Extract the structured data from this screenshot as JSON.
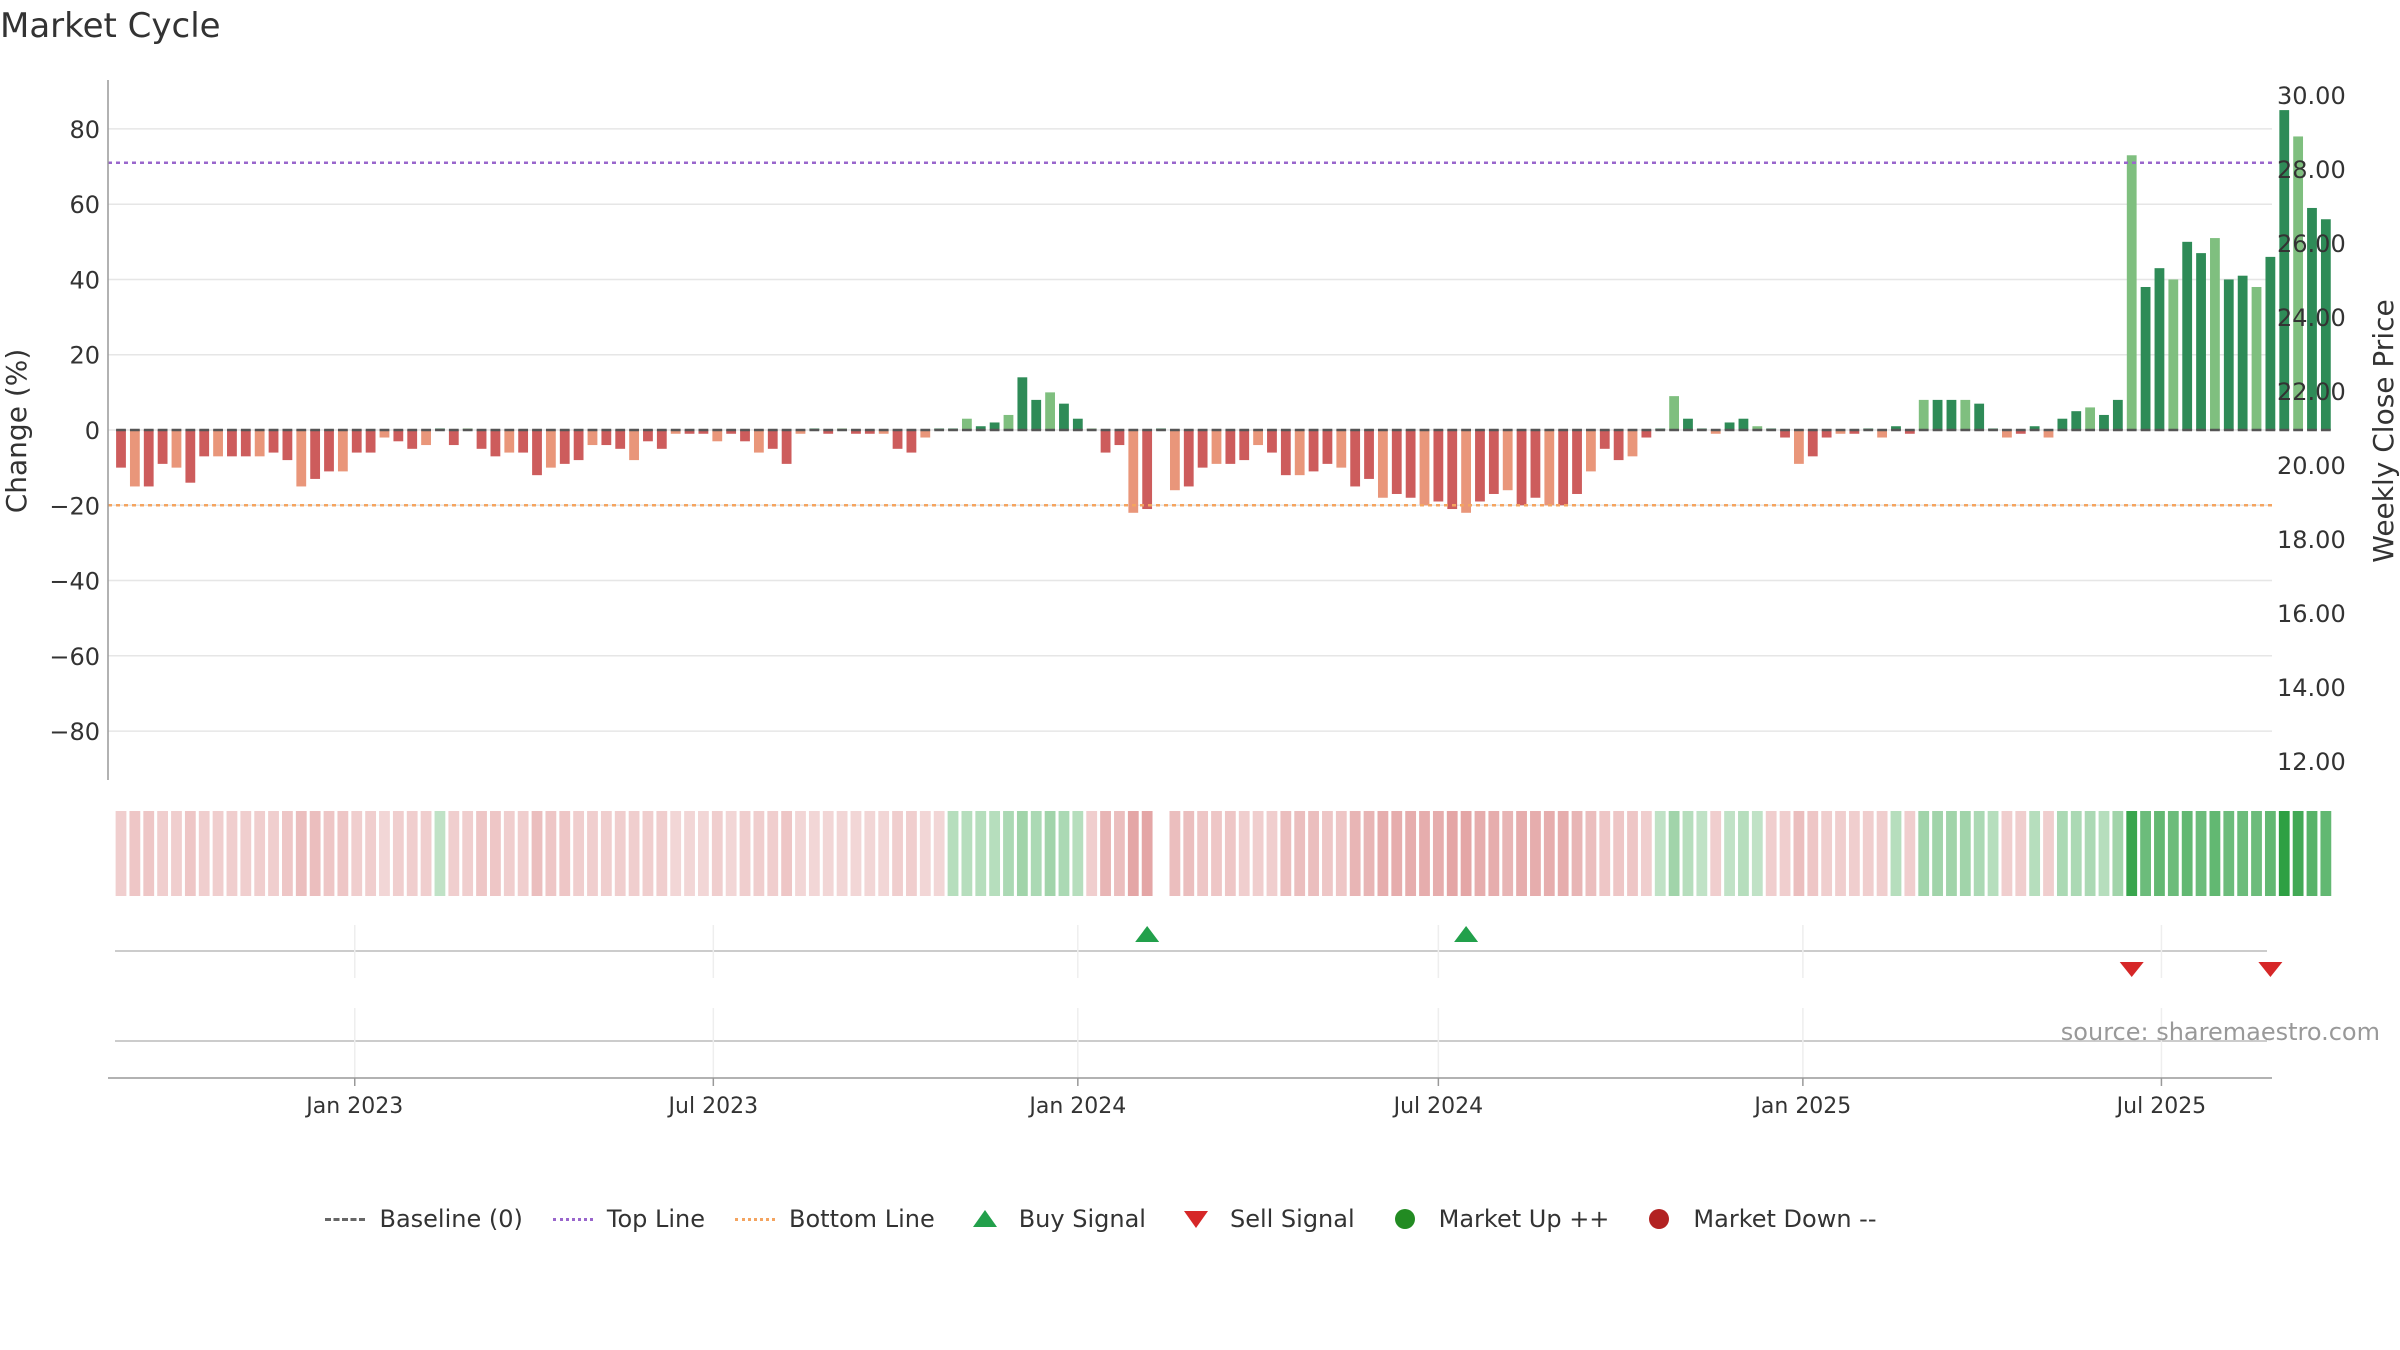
{
  "title": "Market Cycle",
  "source_text": "source: sharemaestro.com",
  "colors": {
    "up_dark": "#2e8b57",
    "up_light": "#7fbf7f",
    "down_dark": "#cd5c5c",
    "down_light": "#e9967a",
    "top_line": "#9966cc",
    "bottom_line": "#f4a460",
    "buy": "#22a04b",
    "sell": "#d62728",
    "market_up": "#228b22",
    "market_down": "#b22222"
  },
  "legend": [
    {
      "key": "baseline",
      "label": "Baseline (0)",
      "color": "#666666"
    },
    {
      "key": "top",
      "label": "Top Line",
      "color": "#9966cc"
    },
    {
      "key": "bottom",
      "label": "Bottom Line",
      "color": "#f4a460"
    },
    {
      "key": "buy",
      "label": "Buy Signal",
      "color": "#22a04b"
    },
    {
      "key": "sell",
      "label": "Sell Signal",
      "color": "#d62728"
    },
    {
      "key": "up",
      "label": "Market Up ++",
      "color": "#228b22"
    },
    {
      "key": "down",
      "label": "Market Down --",
      "color": "#b22222"
    }
  ],
  "chart_data": {
    "type": "bar",
    "x_start": "2022-09-05",
    "interval_days": 7,
    "ylabel": "Change (%)",
    "ylabel_right": "Weekly Close Price",
    "ylim": [
      -93,
      93
    ],
    "y_ticks": [
      "80",
      "60",
      "40",
      "20",
      "0",
      "−20",
      "−40",
      "−60",
      "−80"
    ],
    "y_ticks_right": [
      "30.00",
      "28.00",
      "26.00",
      "24.00",
      "22.00",
      "20.00",
      "18.00",
      "16.00",
      "14.00",
      "12.00"
    ],
    "x_ticks": [
      "Jan 2023",
      "Jul 2023",
      "Jan 2024",
      "Jul 2024",
      "Jan 2025",
      "Jul 2025"
    ],
    "x_tick_dates": [
      "2023-01-01",
      "2023-07-01",
      "2024-01-01",
      "2024-07-01",
      "2025-01-01",
      "2025-07-01"
    ],
    "top_line": 71,
    "bottom_line": -20,
    "values": [
      -10,
      -15,
      -15,
      -9,
      -10,
      -14,
      -7,
      -7,
      -7,
      -7,
      -7,
      -6,
      -8,
      -15,
      -13,
      -11,
      -11,
      -6,
      -6,
      -2,
      -3,
      -5,
      -4,
      0,
      -4,
      0,
      -5,
      -7,
      -6,
      -6,
      -12,
      -10,
      -9,
      -8,
      -4,
      -4,
      -5,
      -8,
      -3,
      -5,
      -1,
      -1,
      -1,
      -3,
      -1,
      -3,
      -6,
      -5,
      -9,
      -1,
      0,
      -1,
      0,
      -1,
      -1,
      -1,
      -5,
      -6,
      -2,
      0,
      0,
      3,
      1,
      2,
      4,
      14,
      8,
      10,
      7,
      3,
      0,
      -6,
      -4,
      -22,
      -21,
      0,
      -16,
      -15,
      -10,
      -9,
      -9,
      -8,
      -4,
      -6,
      -12,
      -12,
      -11,
      -9,
      -10,
      -15,
      -13,
      -18,
      -17,
      -18,
      -20,
      -19,
      -21,
      -22,
      -19,
      -17,
      -16,
      -20,
      -18,
      -20,
      -20,
      -17,
      -11,
      -5,
      -8,
      -7,
      -2,
      0,
      9,
      3,
      0,
      -1,
      2,
      3,
      1,
      0,
      -2,
      -9,
      -7,
      -2,
      -1,
      -1,
      0,
      -2,
      1,
      -1,
      8,
      8,
      8,
      8,
      7,
      0,
      -2,
      -1,
      1,
      -2,
      3,
      5,
      6,
      4,
      8,
      73,
      38,
      43,
      40,
      50,
      47,
      51,
      40,
      41,
      38,
      46,
      85,
      78,
      59,
      56
    ],
    "strength_values": [
      -0.3,
      -0.35,
      -0.35,
      -0.3,
      -0.3,
      -0.35,
      -0.3,
      -0.3,
      -0.3,
      -0.3,
      -0.3,
      -0.3,
      -0.35,
      -0.4,
      -0.4,
      -0.35,
      -0.35,
      -0.3,
      -0.3,
      -0.25,
      -0.3,
      -0.3,
      -0.3,
      0.3,
      -0.3,
      -0.3,
      -0.35,
      -0.35,
      -0.3,
      -0.3,
      -0.4,
      -0.35,
      -0.35,
      -0.3,
      -0.3,
      -0.3,
      -0.3,
      -0.3,
      -0.3,
      -0.3,
      -0.25,
      -0.25,
      -0.25,
      -0.3,
      -0.25,
      -0.3,
      -0.3,
      -0.3,
      -0.35,
      -0.25,
      -0.25,
      -0.25,
      -0.25,
      -0.25,
      -0.25,
      -0.25,
      -0.3,
      -0.3,
      -0.25,
      -0.25,
      0.35,
      0.35,
      0.35,
      0.35,
      0.4,
      0.45,
      0.4,
      0.45,
      0.4,
      0.35,
      -0.3,
      -0.45,
      -0.4,
      -0.55,
      -0.55,
      null,
      -0.4,
      -0.4,
      -0.35,
      -0.35,
      -0.35,
      -0.3,
      -0.3,
      -0.3,
      -0.4,
      -0.4,
      -0.4,
      -0.35,
      -0.35,
      -0.45,
      -0.45,
      -0.5,
      -0.5,
      -0.5,
      -0.5,
      -0.5,
      -0.55,
      -0.55,
      -0.5,
      -0.5,
      -0.45,
      -0.5,
      -0.5,
      -0.5,
      -0.5,
      -0.45,
      -0.4,
      -0.35,
      -0.35,
      -0.35,
      -0.3,
      0.3,
      0.45,
      0.35,
      0.3,
      -0.3,
      0.3,
      0.35,
      0.3,
      -0.3,
      -0.3,
      -0.4,
      -0.35,
      -0.3,
      -0.3,
      -0.3,
      -0.3,
      -0.3,
      0.35,
      -0.3,
      0.45,
      0.45,
      0.45,
      0.45,
      0.4,
      0.35,
      -0.3,
      -0.3,
      0.35,
      -0.3,
      0.4,
      0.4,
      0.4,
      0.35,
      0.45,
      0.95,
      0.7,
      0.75,
      0.7,
      0.75,
      0.7,
      0.75,
      0.7,
      0.7,
      0.7,
      0.75,
      1.0,
      0.9,
      0.8,
      0.75
    ],
    "buy_signals": [
      "2024-02-05",
      "2024-07-15"
    ],
    "sell_signals": [
      "2025-06-16",
      "2025-08-25"
    ]
  }
}
